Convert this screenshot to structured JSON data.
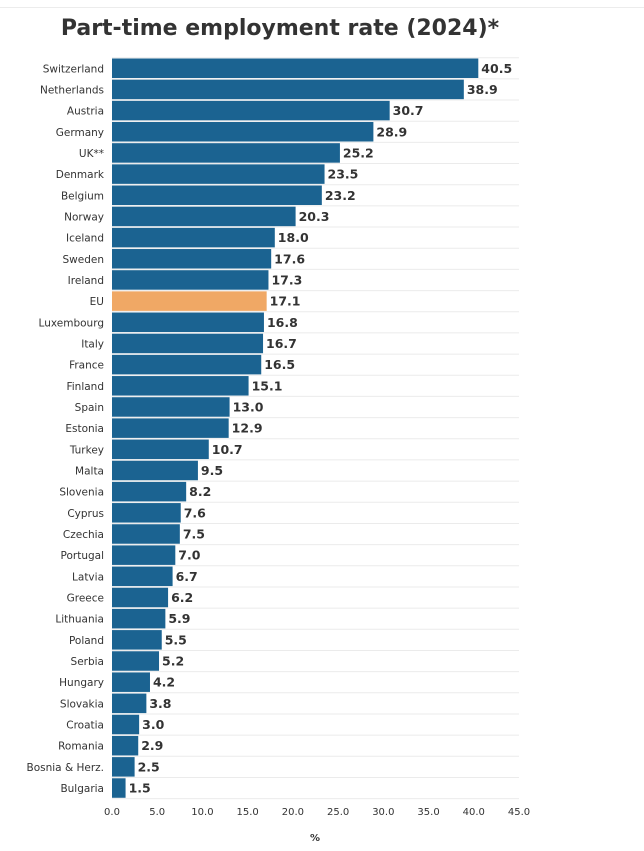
{
  "chart_data": {
    "type": "bar",
    "orientation": "horizontal",
    "title": "Part-time employment rate (2024)*",
    "xlabel": "%",
    "ylabel": "",
    "xlim": [
      0,
      45
    ],
    "ticks": [
      "0.0",
      "5.0",
      "10.0",
      "15.0",
      "20.0",
      "25.0",
      "30.0",
      "35.0",
      "40.0",
      "45.0"
    ],
    "grid": true,
    "colors": {
      "default": "#1b6391",
      "highlight": "#f0a865"
    },
    "highlight": "EU",
    "categories": [
      "Switzerland",
      "Netherlands",
      "Austria",
      "Germany",
      "UK**",
      "Denmark",
      "Belgium",
      "Norway",
      "Iceland",
      "Sweden",
      "Ireland",
      "EU",
      "Luxembourg",
      "Italy",
      "France",
      "Finland",
      "Spain",
      "Estonia",
      "Turkey",
      "Malta",
      "Slovenia",
      "Cyprus",
      "Czechia",
      "Portugal",
      "Latvia",
      "Greece",
      "Lithuania",
      "Poland",
      "Serbia",
      "Hungary",
      "Slovakia",
      "Croatia",
      "Romania",
      "Bosnia & Herz.",
      "Bulgaria"
    ],
    "values": [
      40.5,
      38.9,
      30.7,
      28.9,
      25.2,
      23.5,
      23.2,
      20.3,
      18.0,
      17.6,
      17.3,
      17.1,
      16.8,
      16.7,
      16.5,
      15.1,
      13.0,
      12.9,
      10.7,
      9.5,
      8.2,
      7.6,
      7.5,
      7.0,
      6.7,
      6.2,
      5.9,
      5.5,
      5.2,
      4.2,
      3.8,
      3.0,
      2.9,
      2.5,
      1.5
    ],
    "labels": [
      "40.5",
      "38.9",
      "30.7",
      "28.9",
      "25.2",
      "23.5",
      "23.2",
      "20.3",
      "18.0",
      "17.6",
      "17.3",
      "17.1",
      "16.8",
      "16.7",
      "16.5",
      "15.1",
      "13.0",
      "12.9",
      "10.7",
      "9.5",
      "8.2",
      "7.6",
      "7.5",
      "7.0",
      "6.7",
      "6.2",
      "5.9",
      "5.5",
      "5.2",
      "4.2",
      "3.8",
      "3.0",
      "2.9",
      "2.5",
      "1.5"
    ]
  }
}
